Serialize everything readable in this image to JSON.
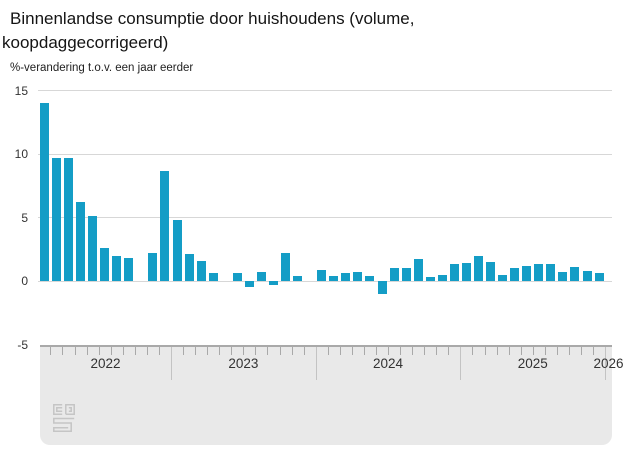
{
  "header": {
    "title": "Binnenlandse consumptie door huishoudens (volume, koopdaggecorrigeerd)",
    "subtitle": "%-verandering t.o.v. een jaar eerder"
  },
  "footer": {
    "logo_name": "cbs-logo"
  },
  "chart_data": {
    "type": "bar",
    "title": "Binnenlandse consumptie door huishoudens (volume, koopdaggecorrigeerd)",
    "ylabel": "%-verandering t.o.v. een jaar eerder",
    "xlabel": "",
    "ylim": [
      -5,
      15
    ],
    "yticks": [
      15,
      10,
      5,
      0,
      -5
    ],
    "grid": true,
    "legend": "none",
    "bar_color": "#149dc6",
    "axis_panel_color": "#e9e9e9",
    "x_axis_years": [
      "2022",
      "2023",
      "2024",
      "2025",
      "2026"
    ],
    "months": [
      "2022-02",
      "2022-03",
      "2022-04",
      "2022-05",
      "2022-06",
      "2022-07",
      "2022-08",
      "2022-09",
      "2022-10",
      "2022-11",
      "2022-12",
      "2023-01",
      "2023-02",
      "2023-03",
      "2023-04",
      "2023-05",
      "2023-06",
      "2023-07",
      "2023-08",
      "2023-09",
      "2023-10",
      "2023-11",
      "2023-12",
      "2024-01",
      "2024-02",
      "2024-03",
      "2024-04",
      "2024-05",
      "2024-06",
      "2024-07",
      "2024-08",
      "2024-09",
      "2024-10",
      "2024-11",
      "2024-12",
      "2025-01",
      "2025-02",
      "2025-03",
      "2025-04",
      "2025-05",
      "2025-06",
      "2025-07",
      "2025-08",
      "2025-09",
      "2025-10",
      "2025-11",
      "2025-12"
    ],
    "values": [
      14.0,
      9.7,
      9.7,
      6.2,
      5.1,
      2.6,
      2.0,
      1.8,
      0.0,
      2.2,
      8.7,
      4.8,
      2.1,
      1.6,
      0.6,
      0.0,
      0.6,
      -0.5,
      0.7,
      -0.3,
      2.2,
      0.4,
      0.0,
      0.9,
      0.4,
      0.6,
      0.7,
      0.4,
      -1.0,
      1.0,
      1.0,
      1.7,
      0.3,
      0.5,
      1.3,
      1.4,
      2.0,
      1.5,
      0.5,
      1.0,
      1.2,
      1.3,
      1.3,
      0.7,
      1.1,
      0.8,
      0.6
    ]
  }
}
